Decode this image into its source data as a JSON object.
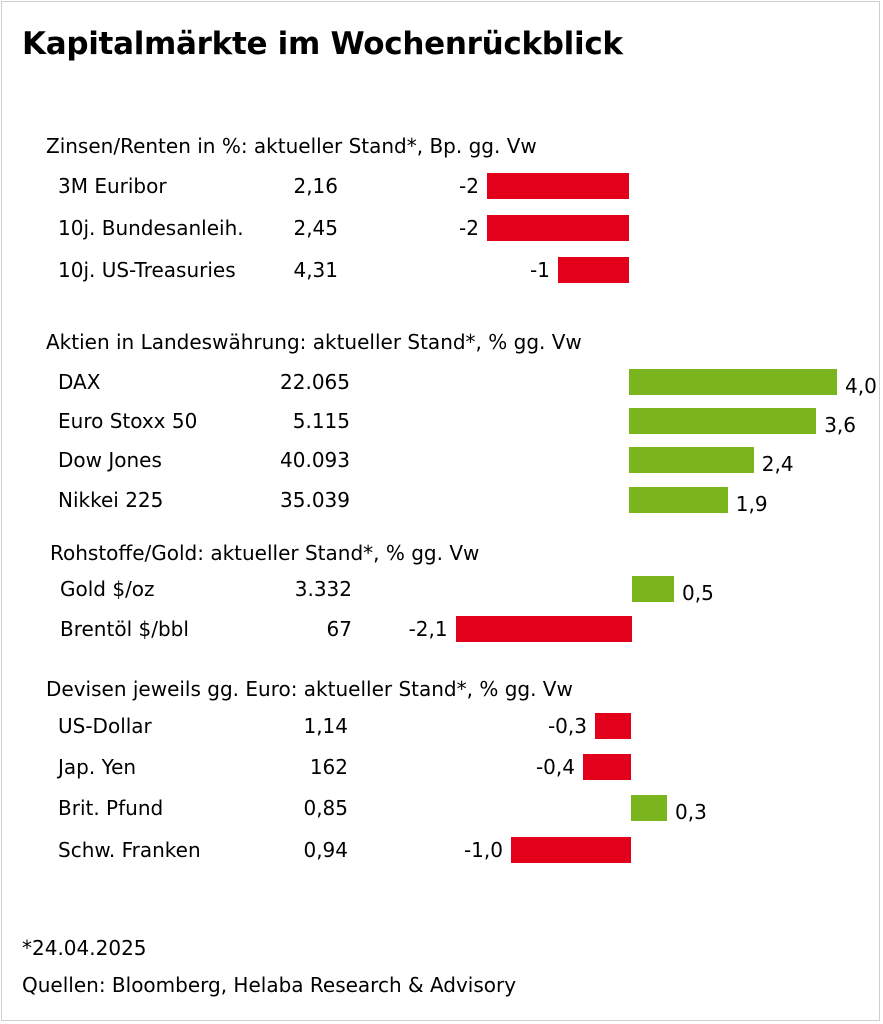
{
  "title": "Kapitalmärkte im Wochenrückblick",
  "colors": {
    "negative": "#e2001a",
    "positive": "#7ab51d"
  },
  "chart_data": [
    {
      "type": "bar",
      "title": "Zinsen/Renten in %: aktueller Stand*, Bp. gg. Vw",
      "categories": [
        "3M Euribor",
        "10j. Bundesanleih.",
        "10j. US-Treasuries"
      ],
      "levels": [
        "2,16",
        "2,45",
        "4,31"
      ],
      "values": [
        -2,
        -2,
        -1
      ],
      "value_labels": [
        "-2",
        "-2",
        "-1"
      ]
    },
    {
      "type": "bar",
      "title": "Aktien in Landeswährung: aktueller Stand*, % gg. Vw",
      "categories": [
        "DAX",
        "Euro Stoxx 50",
        "Dow Jones",
        "Nikkei 225"
      ],
      "levels": [
        "22.065",
        "5.115",
        "40.093",
        "35.039"
      ],
      "values": [
        4.0,
        3.6,
        2.4,
        1.9
      ],
      "value_labels": [
        "4,0",
        "3,6",
        "2,4",
        "1,9"
      ]
    },
    {
      "type": "bar",
      "title": "Rohstoffe/Gold: aktueller Stand*, % gg. Vw",
      "categories": [
        "Gold $/oz",
        "Brentöl $/bbl"
      ],
      "levels": [
        "3.332",
        "67"
      ],
      "values": [
        0.5,
        -2.1
      ],
      "value_labels": [
        "0,5",
        "-2,1"
      ]
    },
    {
      "type": "bar",
      "title": "Devisen jeweils gg. Euro: aktueller Stand*, % gg. Vw",
      "categories": [
        "US-Dollar",
        "Jap. Yen",
        "Brit. Pfund",
        "Schw. Franken"
      ],
      "levels": [
        "1,14",
        "162",
        "0,85",
        "0,94"
      ],
      "values": [
        -0.3,
        -0.4,
        0.3,
        -1.0
      ],
      "value_labels": [
        "-0,3",
        "-0,4",
        "0,3",
        "-1,0"
      ]
    }
  ],
  "footnote": "*24.04.2025",
  "source": "Quellen: Bloomberg, Helaba Research & Advisory"
}
